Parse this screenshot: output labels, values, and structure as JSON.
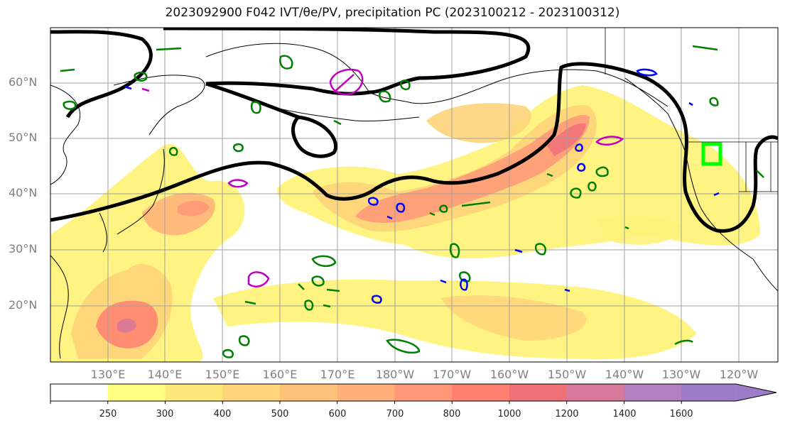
{
  "figure": {
    "title": "2023092900 F042 IVT/θe/PV, precipitation PC (2023100212 - 2023100312)"
  },
  "map": {
    "lat_labels": [
      "60°N",
      "50°N",
      "40°N",
      "30°N",
      "20°N"
    ],
    "lon_labels": [
      "130°E",
      "140°E",
      "150°E",
      "160°E",
      "170°E",
      "180°W",
      "170°W",
      "160°W",
      "150°W",
      "140°W",
      "130°W",
      "120°W"
    ],
    "gridline_color": "#a0a0a0",
    "coastline_color": "#000000",
    "thick_contour_color": "#000000",
    "pv_contour_color": "#008000",
    "negative_contour_color": "#0000ff",
    "magenta_contour_color": "#c000c0",
    "highlight_box_color": "#00ff00"
  },
  "colorbar": {
    "levels": [
      "250",
      "300",
      "400",
      "500",
      "600",
      "700",
      "800",
      "1000",
      "1200",
      "1400",
      "1600"
    ],
    "colors": [
      "#ffffff",
      "#ffff80",
      "#ffe87a",
      "#ffd47a",
      "#ffc27a",
      "#ffb07a",
      "#ff9878",
      "#ff8070",
      "#f07078",
      "#d8789a",
      "#b080c0",
      "#a07cc8"
    ]
  }
}
